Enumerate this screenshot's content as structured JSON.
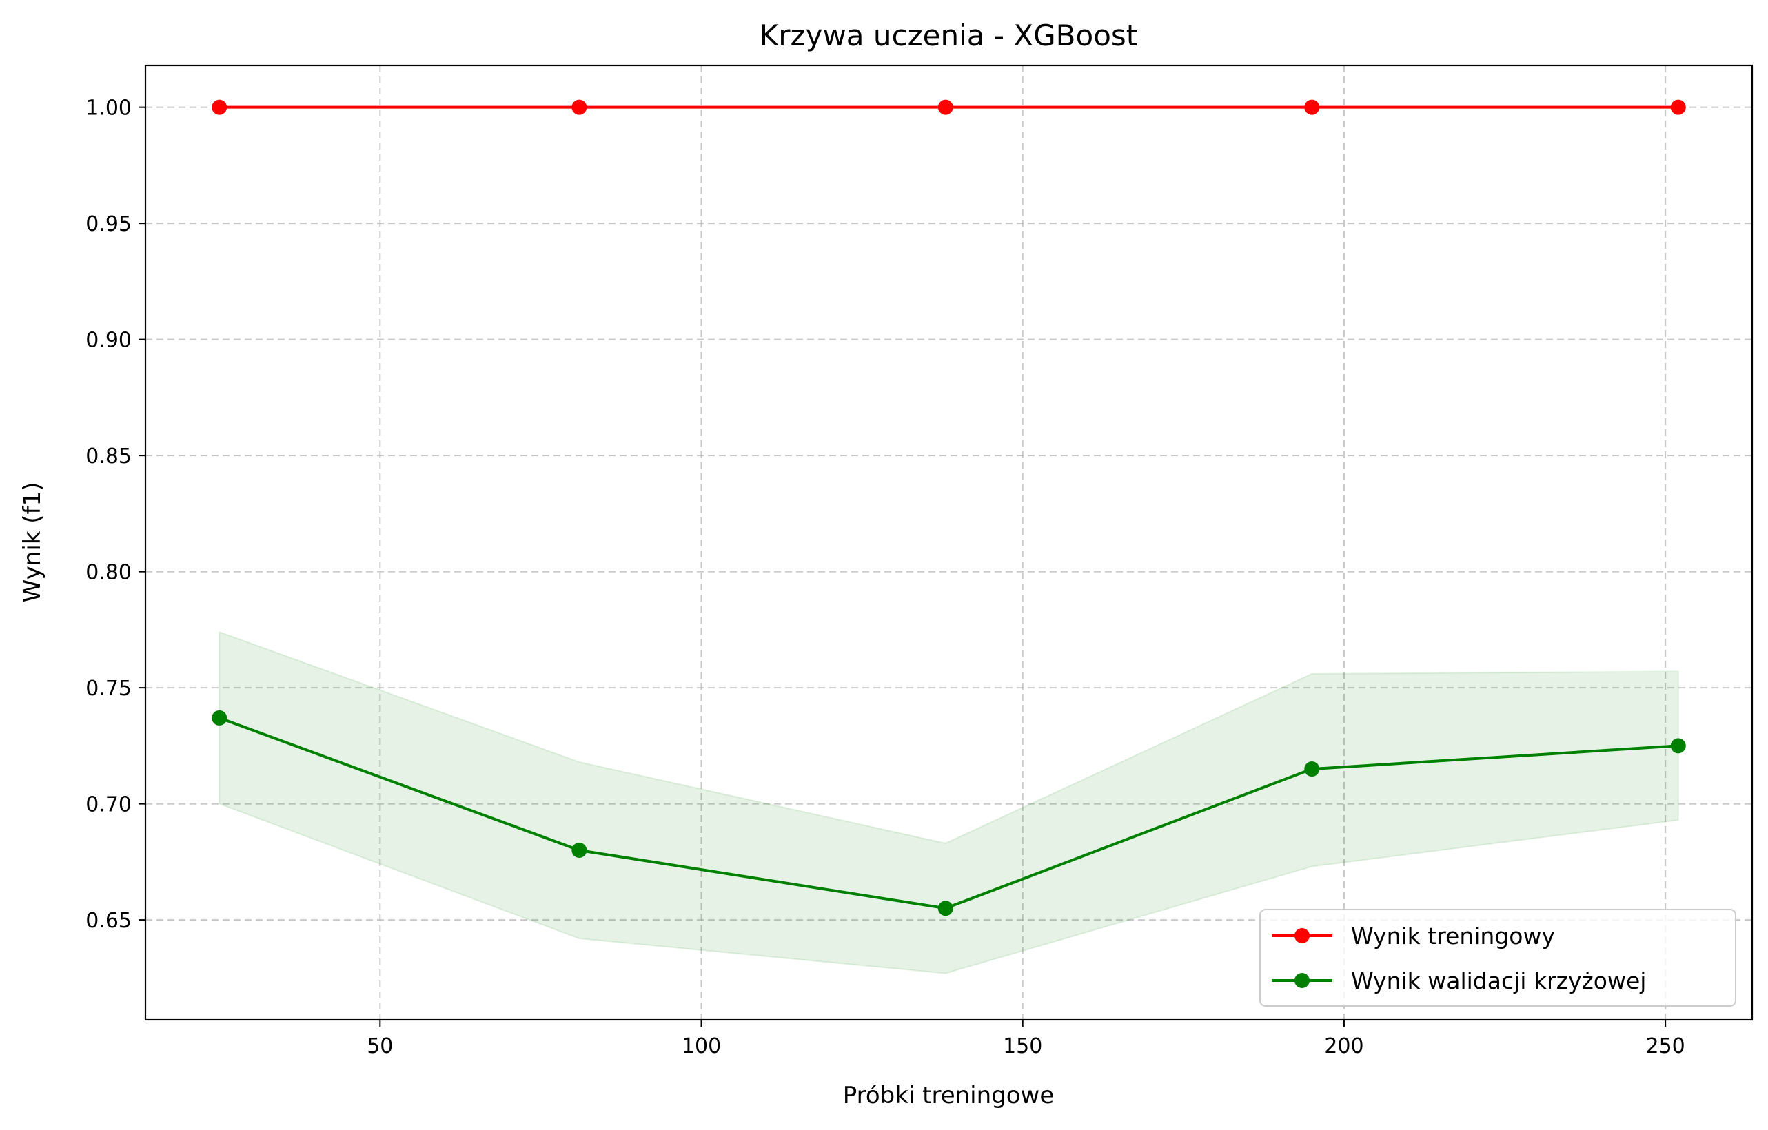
{
  "chart_data": {
    "type": "line",
    "title": "Krzywa uczenia - XGBoost",
    "xlabel": "Próbki treningowe",
    "ylabel": "Wynik (f1)",
    "xlim": [
      13.5,
      263.5
    ],
    "ylim": [
      0.607,
      1.018
    ],
    "xticks": [
      50,
      100,
      150,
      200,
      250
    ],
    "xtick_labels": [
      "50",
      "100",
      "150",
      "200",
      "250"
    ],
    "yticks": [
      0.65,
      0.7,
      0.75,
      0.8,
      0.85,
      0.9,
      0.95,
      1.0
    ],
    "ytick_labels": [
      "0.65",
      "0.70",
      "0.75",
      "0.80",
      "0.85",
      "0.90",
      "0.95",
      "1.00"
    ],
    "grid": true,
    "legend_position": "lower-right",
    "x": [
      25,
      81,
      138,
      195,
      252
    ],
    "series": [
      {
        "name": "Wynik treningowy",
        "color": "#ff0000",
        "values": [
          1.0,
          1.0,
          1.0,
          1.0,
          1.0
        ],
        "band_lower": [
          1.0,
          1.0,
          1.0,
          1.0,
          1.0
        ],
        "band_upper": [
          1.0,
          1.0,
          1.0,
          1.0,
          1.0
        ]
      },
      {
        "name": "Wynik walidacji krzyżowej",
        "color": "#008000",
        "values": [
          0.737,
          0.68,
          0.655,
          0.715,
          0.725
        ],
        "band_lower": [
          0.7,
          0.642,
          0.627,
          0.673,
          0.693
        ],
        "band_upper": [
          0.774,
          0.718,
          0.683,
          0.756,
          0.757
        ]
      }
    ]
  }
}
